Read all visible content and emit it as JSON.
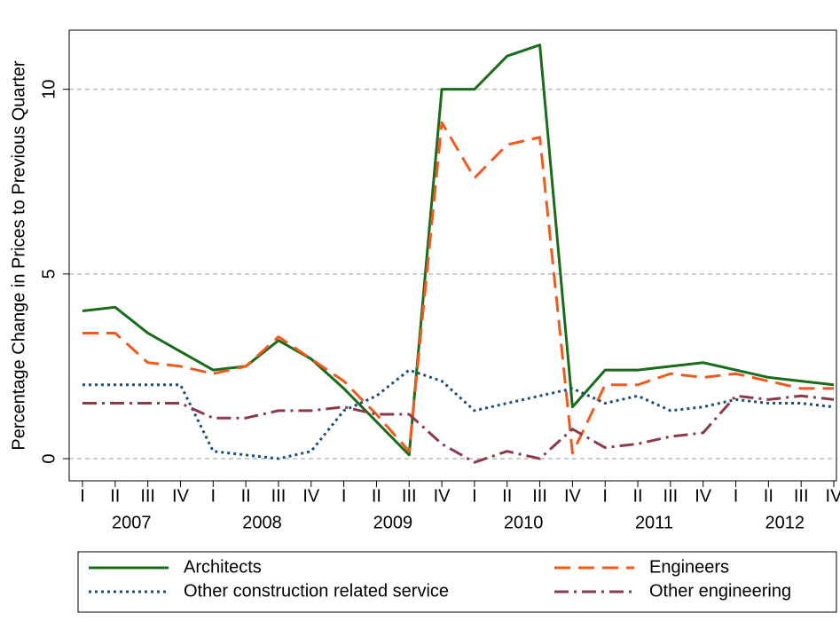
{
  "chart_data": {
    "type": "line",
    "y_label": "Percentage Change in Prices to Previous Quarter",
    "categories": [
      "I",
      "II",
      "III",
      "IV",
      "I",
      "II",
      "III",
      "IV",
      "I",
      "II",
      "III",
      "IV",
      "I",
      "II",
      "III",
      "IV",
      "I",
      "II",
      "III",
      "IV",
      "I",
      "II",
      "III",
      "IV"
    ],
    "groups": [
      "2007",
      "2008",
      "2009",
      "2010",
      "2011",
      "2012"
    ],
    "ylim": [
      -0.6,
      11.6
    ],
    "yticks": [
      0,
      5,
      10
    ],
    "grid": true,
    "series": [
      {
        "name": "Architects",
        "color": "#1a6b1a",
        "dash": "solid",
        "values": [
          4.0,
          4.1,
          3.4,
          2.9,
          2.4,
          2.5,
          3.2,
          2.7,
          1.9,
          1.0,
          0.1,
          10.0,
          10.0,
          10.9,
          11.2,
          1.4,
          2.4,
          2.4,
          2.5,
          2.6,
          2.4,
          2.2,
          2.1,
          2.0
        ]
      },
      {
        "name": "Engineers",
        "color": "#f05a1e",
        "dash": "long",
        "values": [
          3.4,
          3.4,
          2.6,
          2.5,
          2.3,
          2.5,
          3.3,
          2.7,
          2.1,
          1.2,
          0.2,
          9.1,
          7.6,
          8.5,
          8.7,
          0.15,
          2.0,
          2.0,
          2.3,
          2.2,
          2.3,
          2.1,
          1.9,
          1.9
        ]
      },
      {
        "name": "Other construction related service",
        "color": "#1f4e79",
        "dash": "dot",
        "values": [
          2.0,
          2.0,
          2.0,
          2.0,
          0.2,
          0.1,
          0.0,
          0.2,
          1.3,
          1.7,
          2.4,
          2.1,
          1.3,
          1.5,
          1.7,
          1.9,
          1.5,
          1.7,
          1.3,
          1.4,
          1.6,
          1.5,
          1.5,
          1.4
        ]
      },
      {
        "name": "Other engineering",
        "color": "#8b3a4a",
        "dash": "dashdot",
        "values": [
          1.5,
          1.5,
          1.5,
          1.5,
          1.1,
          1.1,
          1.3,
          1.3,
          1.4,
          1.2,
          1.2,
          0.4,
          -0.1,
          0.2,
          0.0,
          0.8,
          0.3,
          0.4,
          0.6,
          0.7,
          1.7,
          1.6,
          1.7,
          1.6
        ]
      }
    ]
  }
}
